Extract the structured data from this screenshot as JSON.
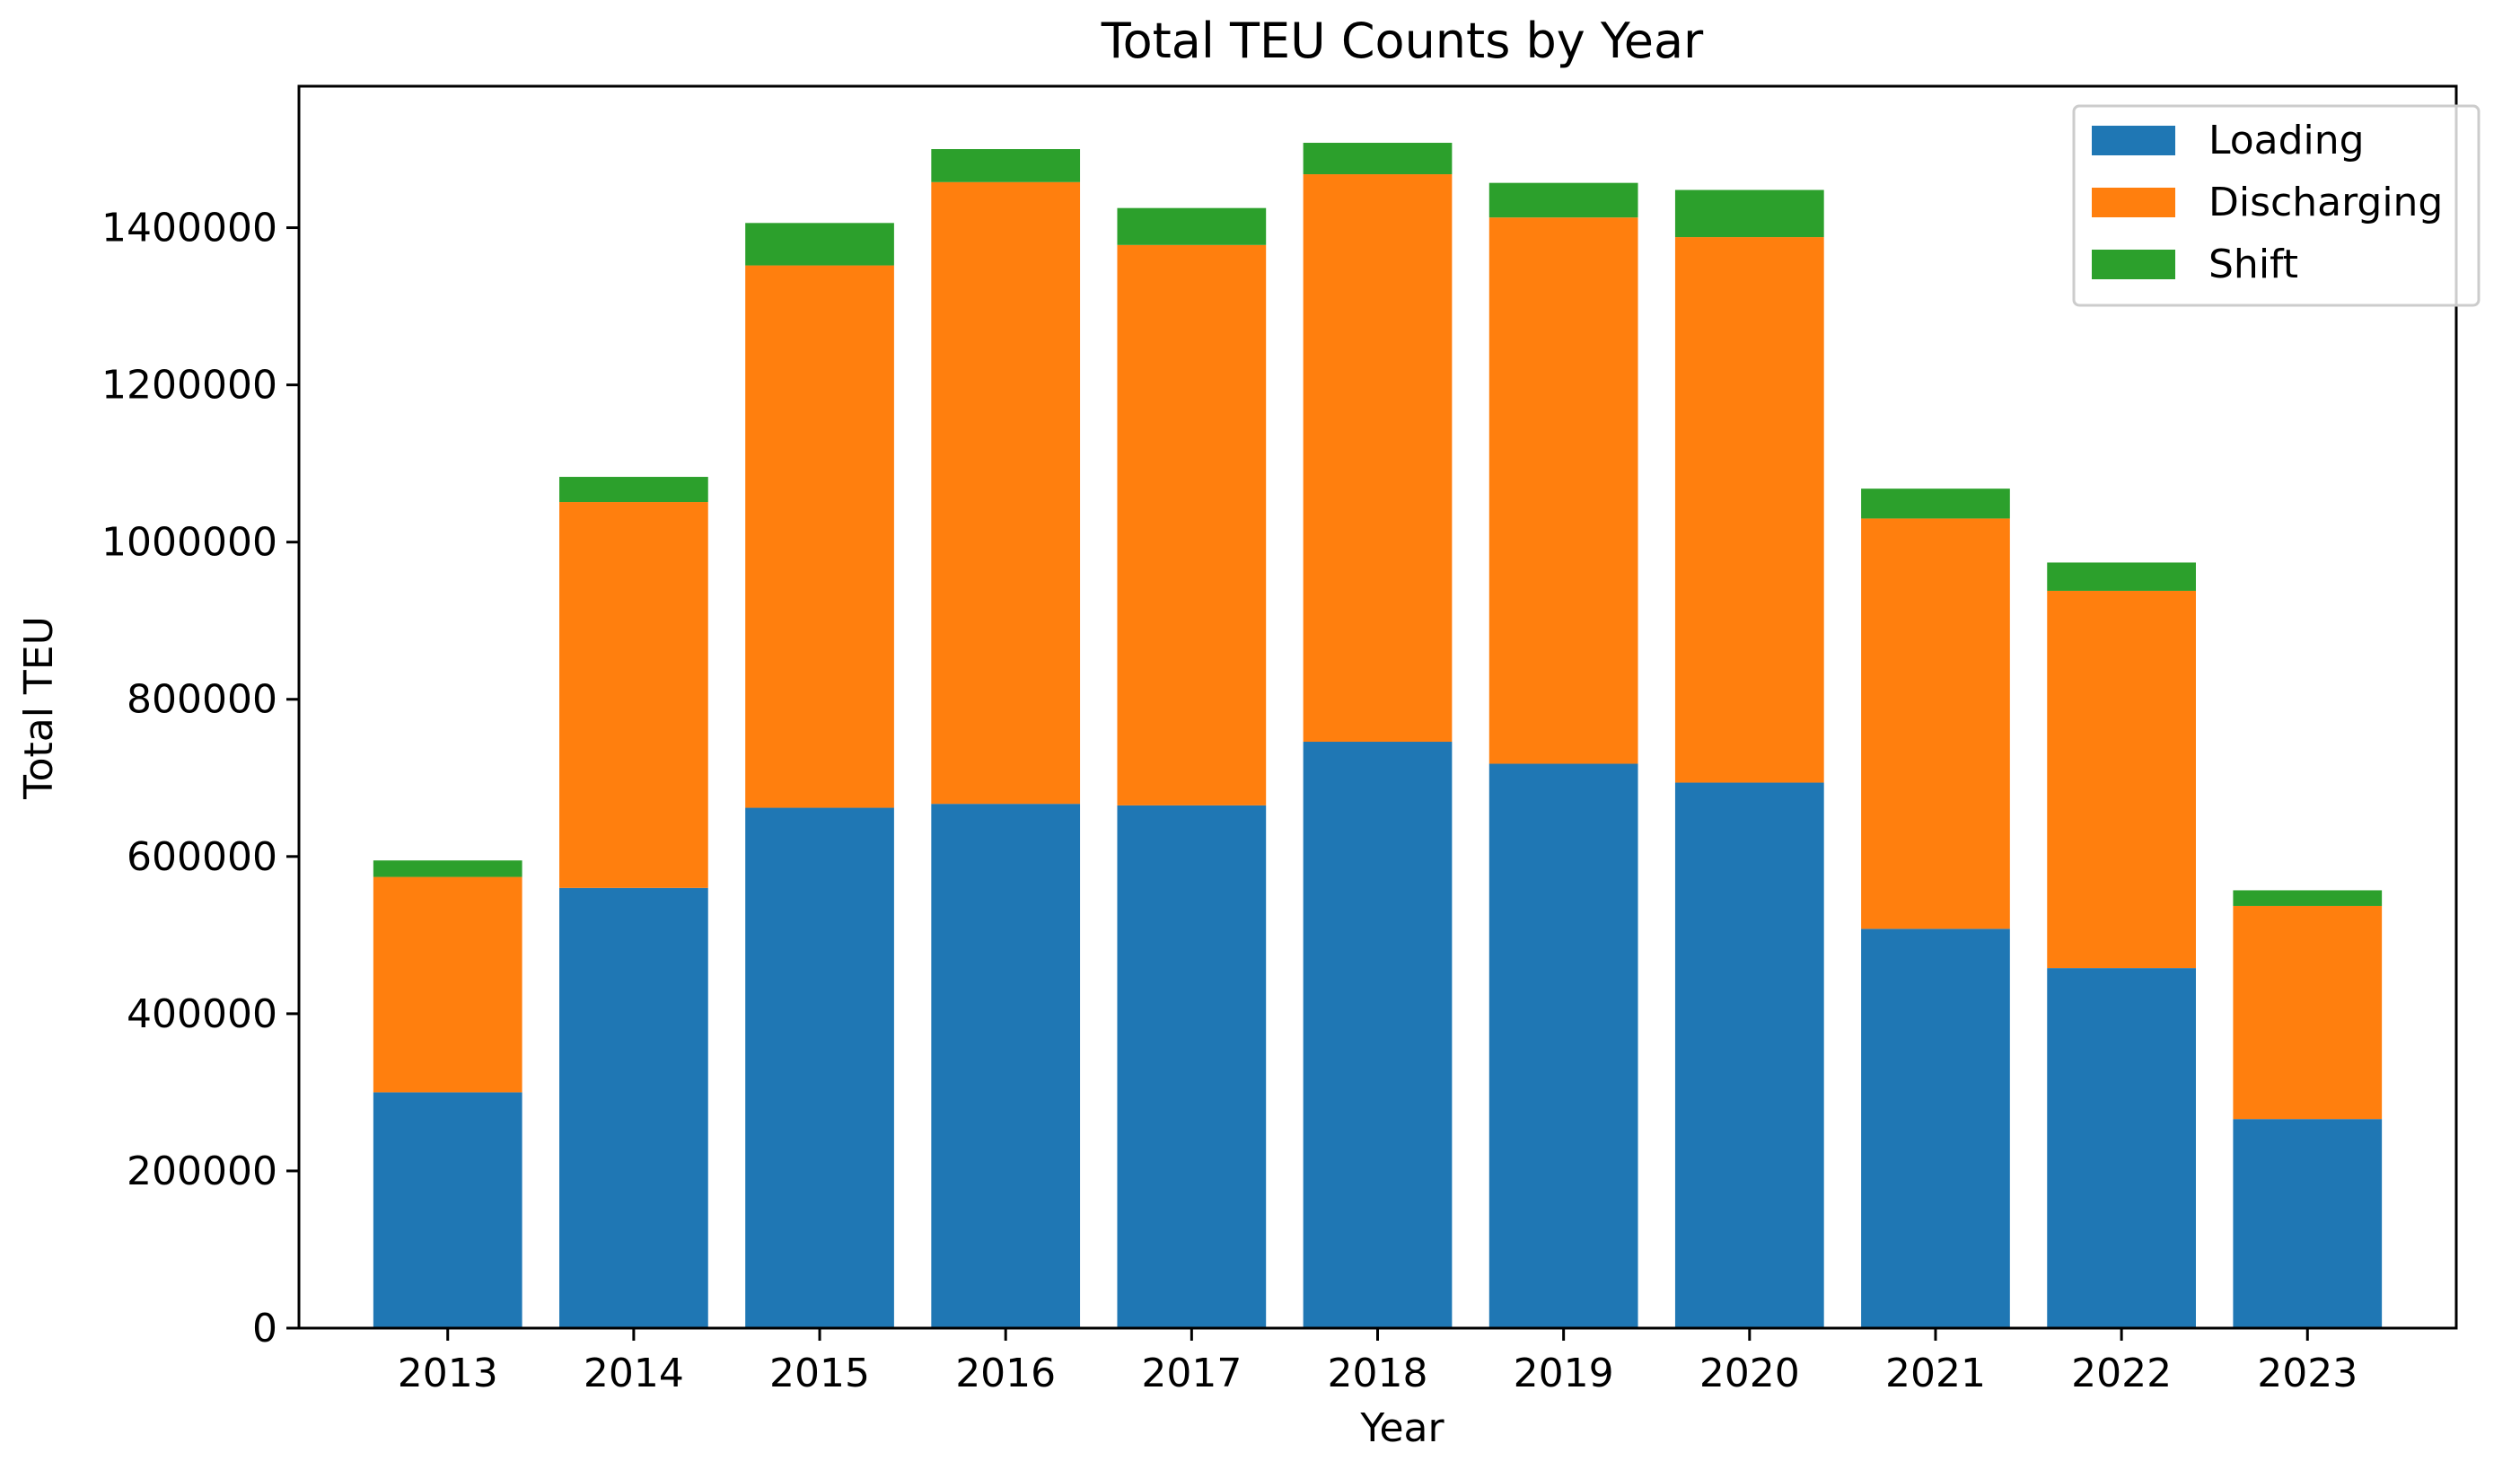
{
  "chart_data": {
    "type": "bar",
    "stacked": true,
    "title": "Total TEU Counts by Year",
    "xlabel": "Year",
    "ylabel": "Total TEU",
    "categories": [
      "2013",
      "2014",
      "2015",
      "2016",
      "2017",
      "2018",
      "2019",
      "2020",
      "2021",
      "2022",
      "2023"
    ],
    "series": [
      {
        "name": "Loading",
        "color": "#1f77b4",
        "values": [
          300000,
          560000,
          662000,
          667000,
          665000,
          746000,
          718000,
          694000,
          508000,
          458000,
          266000
        ]
      },
      {
        "name": "Discharging",
        "color": "#ff7f0e",
        "values": [
          274000,
          491000,
          690000,
          791000,
          713000,
          722000,
          695000,
          694000,
          522000,
          480000,
          271000
        ]
      },
      {
        "name": "Shift",
        "color": "#2ca02c",
        "values": [
          21000,
          32000,
          54000,
          42000,
          47000,
          40000,
          44000,
          60000,
          38000,
          36000,
          20000
        ]
      }
    ],
    "ylim": [
      0,
      1580000
    ],
    "yticks": [
      0,
      200000,
      400000,
      600000,
      800000,
      1000000,
      1200000,
      1400000
    ],
    "ytick_labels": [
      "0",
      "200000",
      "400000",
      "600000",
      "800000",
      "1000000",
      "1200000",
      "1400000"
    ],
    "grid": false,
    "legend_position": "top-right"
  }
}
